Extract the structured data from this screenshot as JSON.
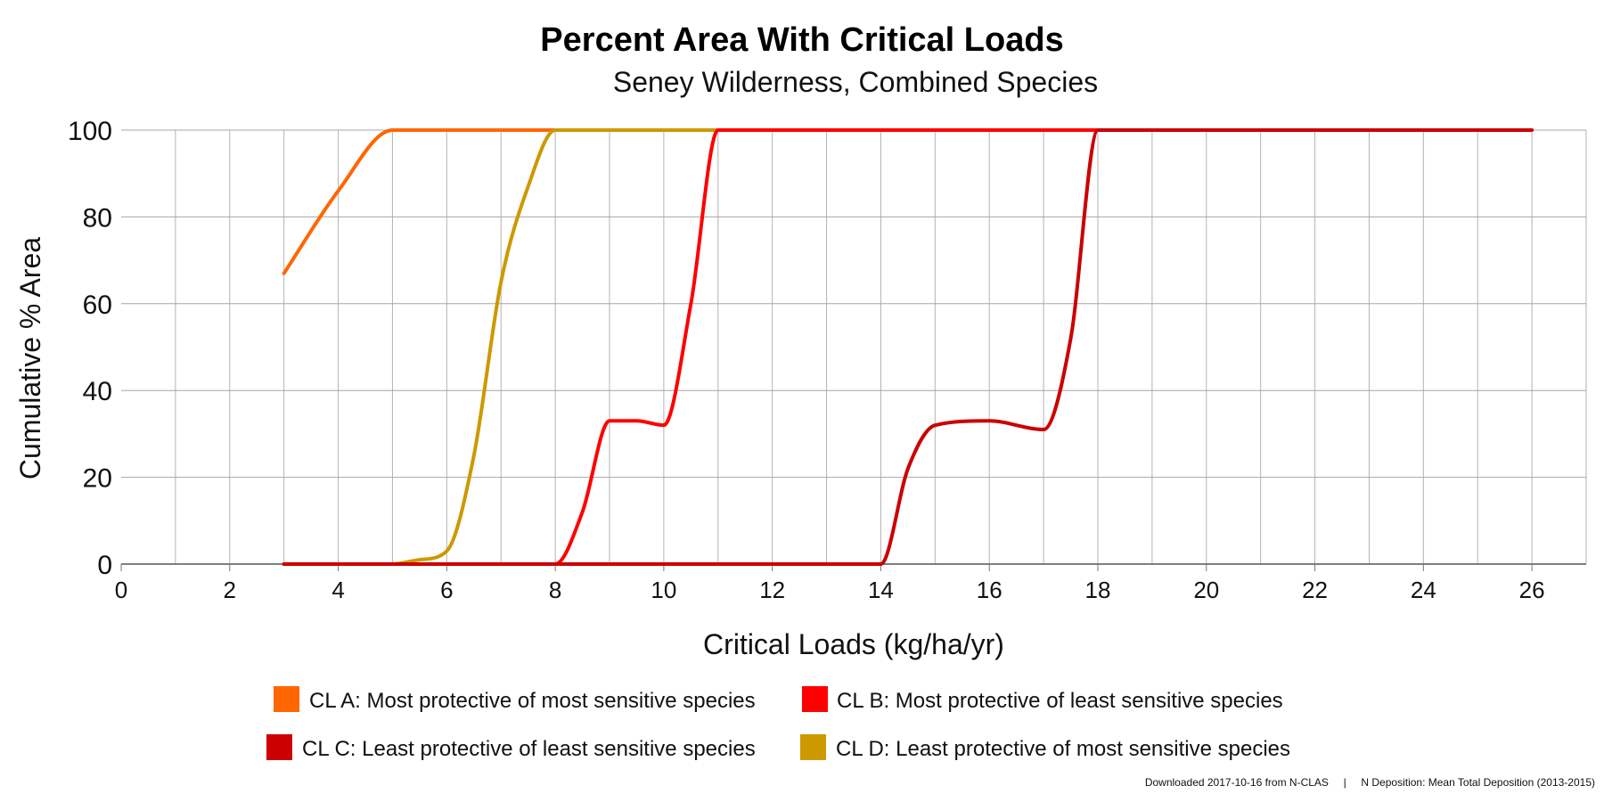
{
  "chart_data": {
    "type": "line",
    "title": "Percent Area With Critical Loads",
    "subtitle": "Seney Wilderness, Combined Species",
    "xlabel": "Critical Loads (kg/ha/yr)",
    "ylabel": "Cumulative % Area",
    "xlim": [
      0,
      27
    ],
    "ylim": [
      0,
      100
    ],
    "x_ticks": [
      0,
      2,
      4,
      6,
      8,
      10,
      12,
      14,
      16,
      18,
      20,
      22,
      24,
      26
    ],
    "y_ticks": [
      0,
      20,
      40,
      60,
      80,
      100
    ],
    "grid": true,
    "legend_position": "bottom",
    "series": [
      {
        "name": "CL A: Most protective of most sensitive species",
        "color": "#ff6600",
        "points": [
          [
            3,
            67
          ],
          [
            4,
            86
          ],
          [
            5,
            100
          ],
          [
            6,
            100
          ],
          [
            8,
            100
          ],
          [
            10,
            100
          ],
          [
            12,
            100
          ],
          [
            14,
            100
          ],
          [
            16,
            100
          ],
          [
            18,
            100
          ],
          [
            19,
            100
          ]
        ]
      },
      {
        "name": "CL B: Most protective of least sensitive species",
        "color": "#ff0000",
        "points": [
          [
            3,
            0
          ],
          [
            4,
            0
          ],
          [
            5,
            0
          ],
          [
            6,
            0
          ],
          [
            7,
            0
          ],
          [
            8,
            0
          ],
          [
            8.5,
            12
          ],
          [
            9,
            33
          ],
          [
            9.5,
            33
          ],
          [
            10,
            32
          ],
          [
            10.5,
            60
          ],
          [
            11,
            100
          ],
          [
            12,
            100
          ],
          [
            14,
            100
          ],
          [
            16,
            100
          ],
          [
            18,
            100
          ],
          [
            19,
            100
          ]
        ]
      },
      {
        "name": "CL C: Least protective of least sensitive species",
        "color": "#cc0000",
        "points": [
          [
            3,
            0
          ],
          [
            5,
            0
          ],
          [
            8,
            0
          ],
          [
            10,
            0
          ],
          [
            12,
            0
          ],
          [
            14,
            0
          ],
          [
            14.5,
            22
          ],
          [
            15,
            32
          ],
          [
            16,
            33
          ],
          [
            17,
            31
          ],
          [
            17.5,
            52
          ],
          [
            18,
            100
          ],
          [
            19,
            100
          ],
          [
            20,
            100
          ],
          [
            22,
            100
          ],
          [
            24,
            100
          ],
          [
            26,
            100
          ]
        ]
      },
      {
        "name": "CL D: Least protective of most sensitive species",
        "color": "#cc9900",
        "points": [
          [
            3,
            0
          ],
          [
            4,
            0
          ],
          [
            5,
            0
          ],
          [
            5.5,
            1
          ],
          [
            6,
            3
          ],
          [
            6.5,
            25
          ],
          [
            7,
            65
          ],
          [
            7.5,
            87
          ],
          [
            8,
            100
          ],
          [
            9,
            100
          ],
          [
            10,
            100
          ],
          [
            12,
            100
          ],
          [
            14,
            100
          ],
          [
            16,
            100
          ],
          [
            18,
            100
          ],
          [
            19,
            100
          ]
        ]
      }
    ],
    "footer": "Downloaded 2017-10-16 from N-CLAS     |     N Deposition: Mean Total Deposition (2013-2015)"
  }
}
